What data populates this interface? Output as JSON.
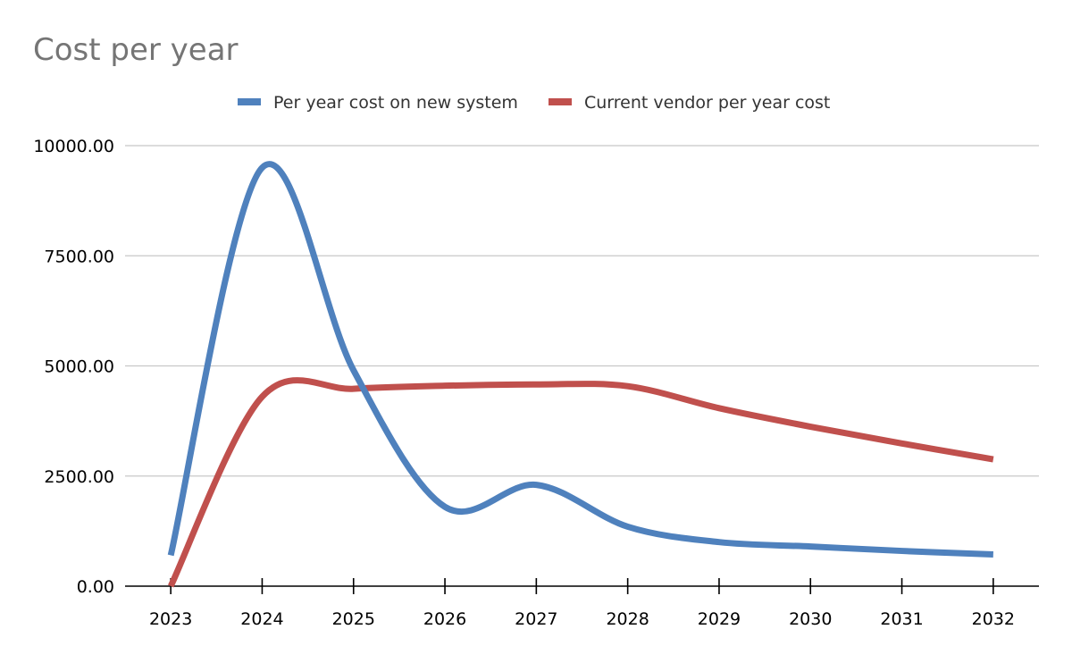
{
  "chart_data": {
    "type": "line",
    "title": "Cost per year",
    "xlabel": "",
    "ylabel": "",
    "categories": [
      "2023",
      "2024",
      "2025",
      "2026",
      "2027",
      "2028",
      "2029",
      "2030",
      "2031",
      "2032"
    ],
    "y_ticks": [
      "0.00",
      "2500.00",
      "5000.00",
      "7500.00",
      "10000.00"
    ],
    "ylim": [
      0,
      10000
    ],
    "grid": true,
    "legend_position": "top",
    "smooth": true,
    "series": [
      {
        "name": "Per year cost on new system",
        "color": "#4f81bd",
        "values": [
          700,
          9500,
          4900,
          1800,
          2300,
          1350,
          1000,
          900,
          800,
          720
        ]
      },
      {
        "name": "Current vendor per year cost",
        "color": "#c0504d",
        "values": [
          0,
          4300,
          4480,
          4550,
          4580,
          4540,
          4040,
          3620,
          3240,
          2880
        ]
      }
    ]
  }
}
